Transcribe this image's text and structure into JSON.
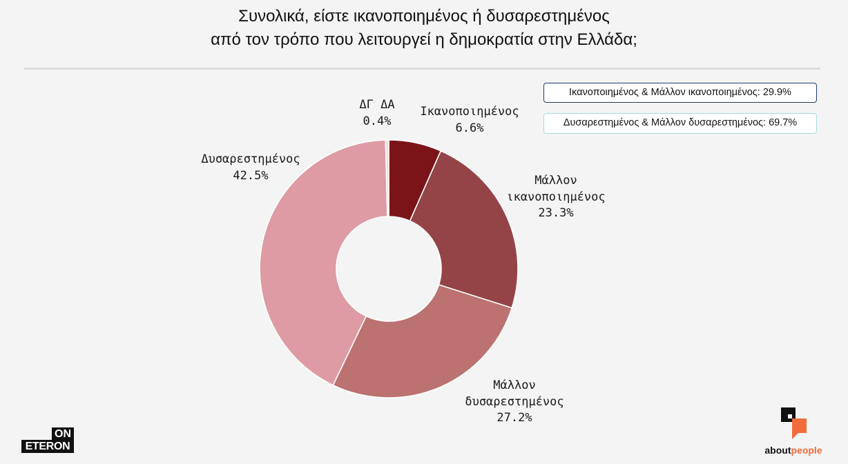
{
  "chart_data": {
    "type": "pie",
    "donut": true,
    "title": "Συνολικά, είστε ικανοποιημένος ή δυσαρεστημένος\nαπό τον τρόπο που λειτουργεί η δημοκρατία στην Ελλάδα;",
    "categories": [
      "Ικανοποιημένος",
      "Μάλλον ικανοποιημένος",
      "Μάλλον δυσαρεστημένος",
      "Δυσαρεστημένος",
      "ΔΓ ΔΑ"
    ],
    "values": [
      6.6,
      23.3,
      27.2,
      42.5,
      0.4
    ],
    "data_labels": [
      "6.6%",
      "23.3%",
      "27.2%",
      "42.5%",
      "0.4%"
    ],
    "colors": [
      "#7a1419",
      "#944447",
      "#bb7270",
      "#de9ba4",
      "#f0d9d4"
    ],
    "annotations": [
      {
        "text": "Ικανοποιημένος & Μάλλον ικανοποιημένος: 29.9%",
        "border_color": "#1f3b6e"
      },
      {
        "text": "Δυσαρεστημένος & Μάλλον δυσαρεστημένος: 69.7%",
        "border_color": "#a9dadd"
      }
    ]
  },
  "branding": {
    "left_logo": {
      "top": "ON",
      "bottom": "ETERON"
    },
    "right_logo": {
      "part1": "about",
      "part2": "people",
      "accent_color": "#f26b3a"
    }
  }
}
